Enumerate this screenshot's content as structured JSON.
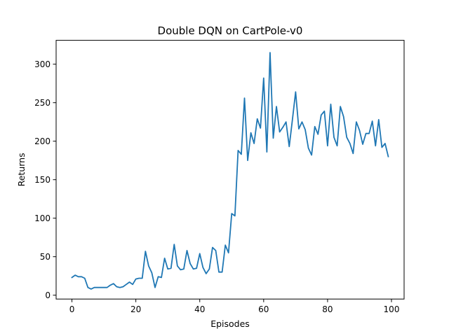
{
  "chart_data": {
    "type": "line",
    "title": "Double DQN on CartPole-v0",
    "xlabel": "Episodes",
    "ylabel": "Returns",
    "xlim": [
      -4.95,
      103.95
    ],
    "ylim": [
      -5,
      331
    ],
    "xticks": [
      0,
      20,
      40,
      60,
      80,
      100
    ],
    "yticks": [
      0,
      50,
      100,
      150,
      200,
      250,
      300
    ],
    "grid": false,
    "series": [
      {
        "color": "#1f77b4",
        "x": [
          0,
          1,
          2,
          3,
          4,
          5,
          6,
          7,
          8,
          9,
          10,
          11,
          12,
          13,
          14,
          15,
          16,
          17,
          18,
          19,
          20,
          21,
          22,
          23,
          24,
          25,
          26,
          27,
          28,
          29,
          30,
          31,
          32,
          33,
          34,
          35,
          36,
          37,
          38,
          39,
          40,
          41,
          42,
          43,
          44,
          45,
          46,
          47,
          48,
          49,
          50,
          51,
          52,
          53,
          54,
          55,
          56,
          57,
          58,
          59,
          60,
          61,
          62,
          63,
          64,
          65,
          66,
          67,
          68,
          69,
          70,
          71,
          72,
          73,
          74,
          75,
          76,
          77,
          78,
          79,
          80,
          81,
          82,
          83,
          84,
          85,
          86,
          87,
          88,
          89,
          90,
          91,
          92,
          93,
          94,
          95,
          96,
          97,
          98,
          99
        ],
        "y": [
          23,
          26,
          24,
          24,
          22,
          10,
          8,
          10,
          10,
          10,
          10,
          10,
          13,
          15,
          11,
          10,
          11,
          14,
          17,
          14,
          21,
          22,
          22,
          57,
          38,
          29,
          10,
          24,
          23,
          48,
          34,
          35,
          66,
          38,
          33,
          34,
          58,
          41,
          34,
          35,
          54,
          36,
          28,
          34,
          62,
          58,
          30,
          30,
          65,
          55,
          106,
          103,
          188,
          183,
          256,
          175,
          211,
          197,
          229,
          217,
          282,
          186,
          315,
          204,
          245,
          212,
          218,
          225,
          193,
          228,
          264,
          216,
          225,
          215,
          191,
          182,
          219,
          209,
          234,
          239,
          194,
          248,
          205,
          194,
          245,
          232,
          205,
          197,
          184,
          225,
          214,
          196,
          210,
          210,
          226,
          194,
          228,
          192,
          197,
          180
        ]
      }
    ]
  }
}
